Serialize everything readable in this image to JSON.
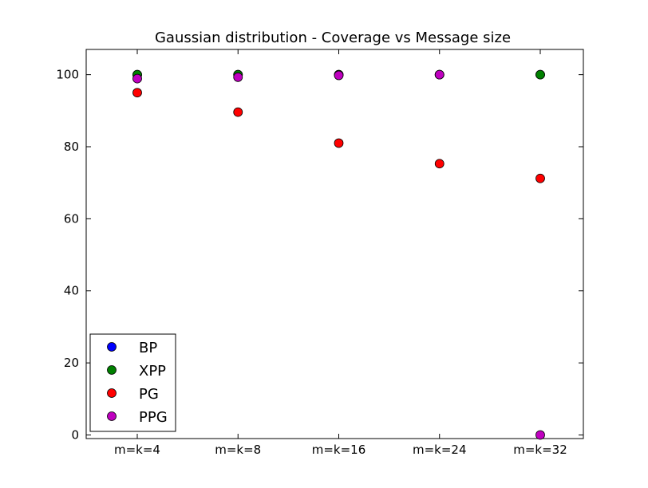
{
  "chart_data": {
    "type": "scatter",
    "title": "Gaussian distribution - Coverage vs Message size",
    "xlabel": "",
    "ylabel": "",
    "categories": [
      "m=k=4",
      "m=k=8",
      "m=k=16",
      "m=k=24",
      "m=k=32"
    ],
    "ylim": [
      -1,
      107
    ],
    "yticks": [
      0,
      20,
      40,
      60,
      80,
      100
    ],
    "grid": false,
    "legend_position": "lower-left",
    "series": [
      {
        "name": "BP",
        "color": "#0000ff",
        "values": [
          100,
          100,
          100,
          100,
          100
        ]
      },
      {
        "name": "XPP",
        "color": "#008000",
        "values": [
          100,
          100,
          100,
          100,
          100
        ]
      },
      {
        "name": "PG",
        "color": "#ff0000",
        "values": [
          95,
          89.6,
          81,
          75.3,
          71.2
        ]
      },
      {
        "name": "PPG",
        "color": "#bf00bf",
        "values": [
          98.9,
          99.3,
          99.8,
          100,
          0
        ]
      }
    ]
  }
}
